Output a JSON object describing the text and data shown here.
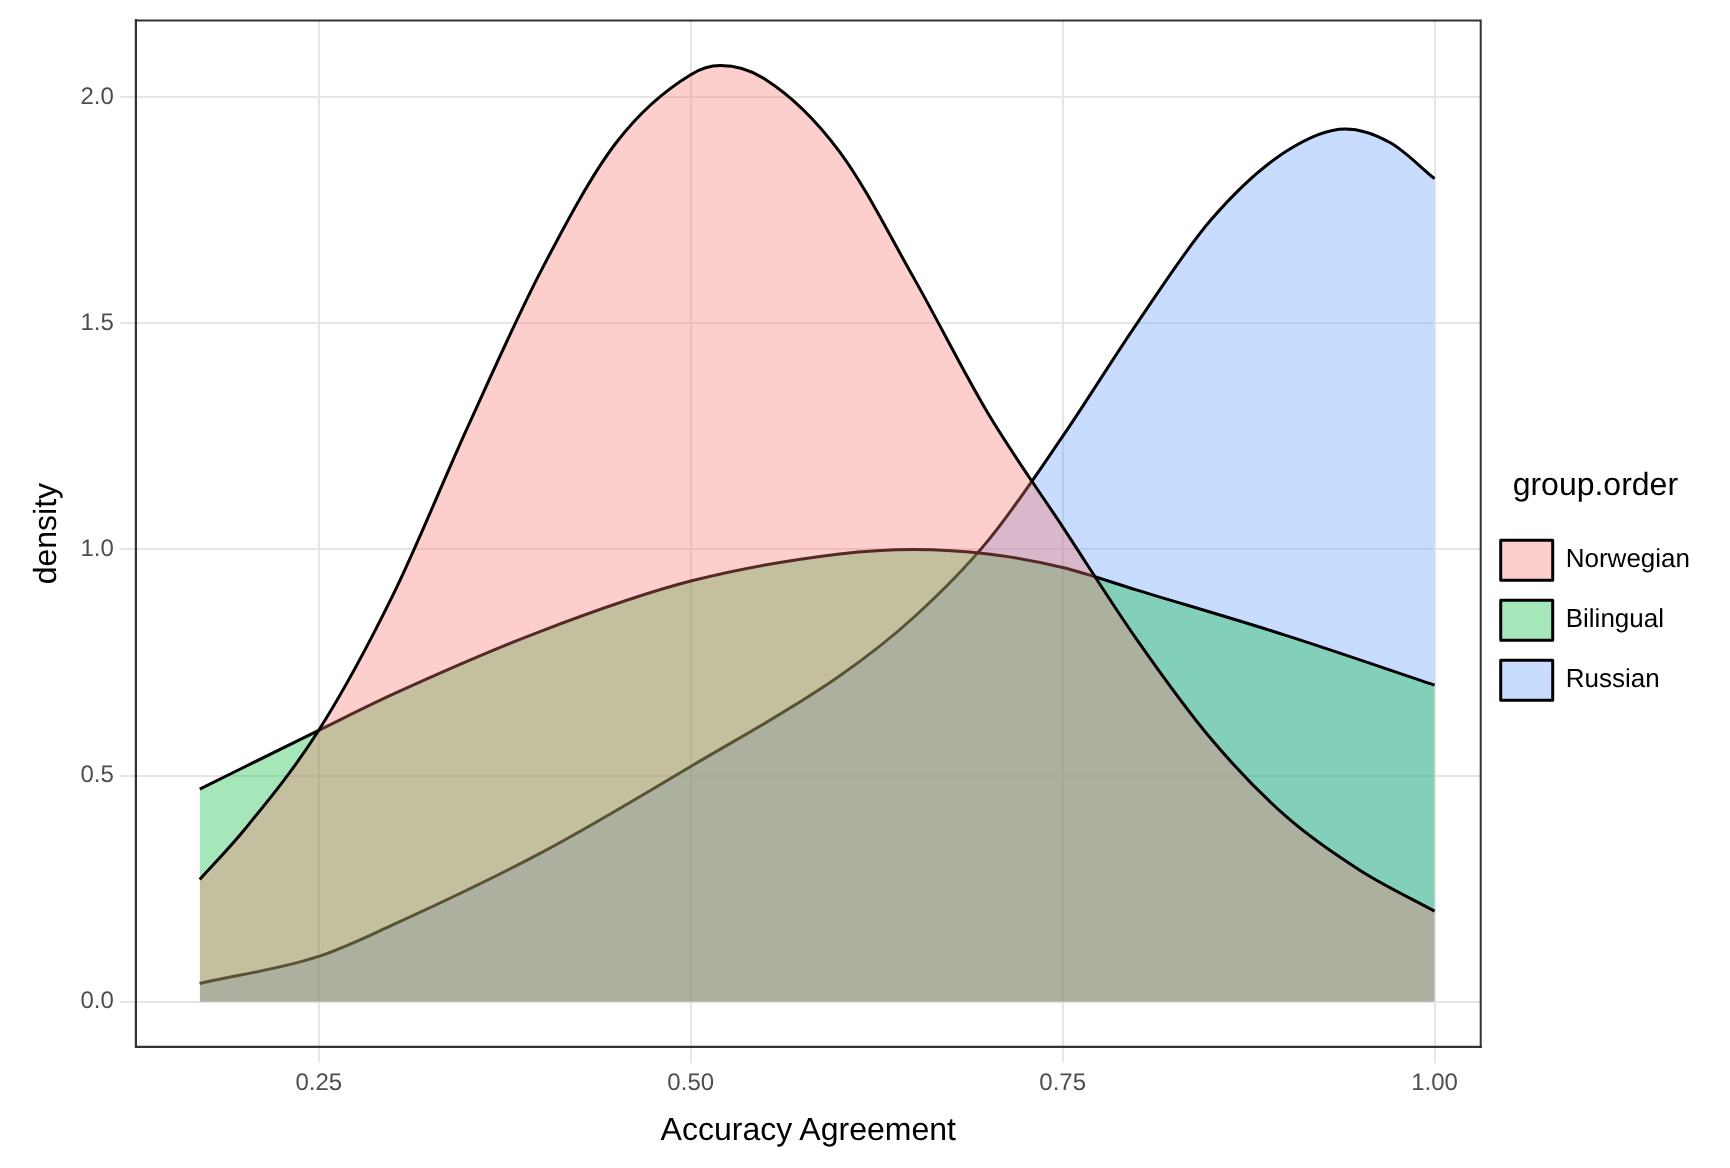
{
  "chart_data": {
    "type": "area",
    "xlabel": "Accuracy Agreement",
    "ylabel": "density",
    "legend_title": "group.order",
    "legend": "right",
    "grid": true,
    "xlim": [
      0.127,
      1.031
    ],
    "ylim": [
      -0.1,
      2.17
    ],
    "xticks": [
      {
        "value": 0.25,
        "label": "0.25"
      },
      {
        "value": 0.5,
        "label": "0.50"
      },
      {
        "value": 0.75,
        "label": "0.75"
      },
      {
        "value": 1,
        "label": "1.00"
      }
    ],
    "yticks": [
      {
        "value": 0,
        "label": "0.0"
      },
      {
        "value": 0.5,
        "label": "0.5"
      },
      {
        "value": 1,
        "label": "1.0"
      },
      {
        "value": 1.5,
        "label": "1.5"
      },
      {
        "value": 2,
        "label": "2.0"
      }
    ],
    "series": [
      {
        "name": "Norwegian",
        "color": "#f8766d",
        "x": [
          0.17,
          0.2,
          0.25,
          0.3,
          0.35,
          0.4,
          0.45,
          0.5,
          0.52,
          0.55,
          0.6,
          0.65,
          0.7,
          0.75,
          0.8,
          0.85,
          0.9,
          0.95,
          1.0
        ],
        "values": [
          0.27,
          0.38,
          0.6,
          0.9,
          1.27,
          1.62,
          1.9,
          2.05,
          2.07,
          2.04,
          1.88,
          1.6,
          1.3,
          1.05,
          0.8,
          0.58,
          0.41,
          0.29,
          0.2
        ]
      },
      {
        "name": "Bilingual",
        "color": "#00ba38",
        "x": [
          0.17,
          0.25,
          0.3,
          0.4,
          0.5,
          0.6,
          0.65,
          0.7,
          0.75,
          0.8,
          0.9,
          1.0
        ],
        "values": [
          0.47,
          0.6,
          0.68,
          0.82,
          0.93,
          0.99,
          1.0,
          0.99,
          0.96,
          0.91,
          0.81,
          0.7
        ]
      },
      {
        "name": "Russian",
        "color": "#619cff",
        "x": [
          0.17,
          0.25,
          0.3,
          0.4,
          0.5,
          0.6,
          0.65,
          0.7,
          0.75,
          0.8,
          0.85,
          0.9,
          0.94,
          0.97,
          1.0
        ],
        "values": [
          0.04,
          0.1,
          0.17,
          0.33,
          0.52,
          0.72,
          0.85,
          1.02,
          1.25,
          1.5,
          1.73,
          1.88,
          1.93,
          1.9,
          1.82
        ]
      }
    ]
  }
}
